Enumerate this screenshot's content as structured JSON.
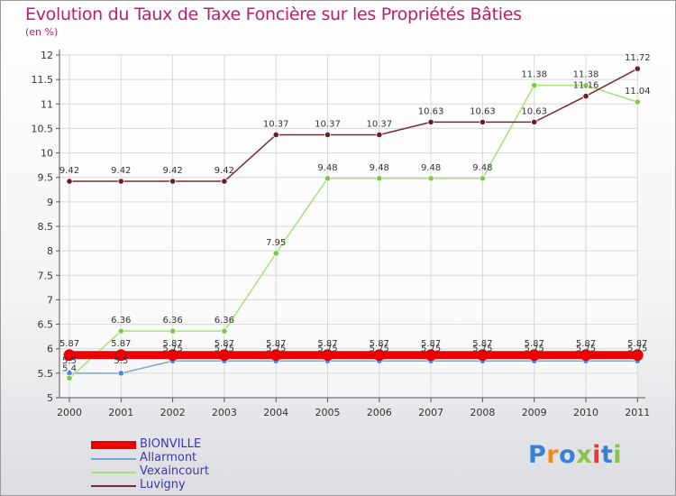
{
  "chart_data": {
    "type": "line",
    "title": "Evolution du Taux de Taxe Foncière sur les Propriétés Bâties",
    "subtitle": "(en %)",
    "xlabel": "",
    "ylabel": "(en %)",
    "ylim": [
      5,
      12
    ],
    "yticks": [
      "5",
      "5.5",
      "6",
      "6.5",
      "7",
      "7.5",
      "8",
      "8.5",
      "9",
      "9.5",
      "10",
      "10.5",
      "11",
      "11.5",
      "12"
    ],
    "categories": [
      "2000",
      "2001",
      "2002",
      "2003",
      "2004",
      "2005",
      "2006",
      "2007",
      "2008",
      "2009",
      "2010",
      "2011"
    ],
    "grid": true,
    "legend_position": "bottom-left",
    "series": [
      {
        "name": "BIONVILLE",
        "color": "#ee0000",
        "values": [
          5.87,
          5.87,
          5.87,
          5.87,
          5.87,
          5.87,
          5.87,
          5.87,
          5.87,
          5.87,
          5.87,
          5.87
        ],
        "labels": [
          "5.87",
          "5.87",
          "5.87",
          "5.87",
          "5.87",
          "5.87",
          "5.87",
          "5.87",
          "5.87",
          "5.87",
          "5.87",
          "5.87"
        ]
      },
      {
        "name": "Allarmont",
        "color": "#5b9bd5",
        "values": [
          5.5,
          5.5,
          5.75,
          5.75,
          5.75,
          5.75,
          5.75,
          5.75,
          5.75,
          5.75,
          5.75,
          5.75
        ],
        "labels": [
          "5.5",
          "5.5",
          "5.75",
          "5.75",
          "5.75",
          "5.75",
          "5.75",
          "5.75",
          "5.75",
          "5.75",
          "5.75",
          "5.75"
        ]
      },
      {
        "name": "Vexaincourt",
        "color": "#8cd35a",
        "values": [
          5.4,
          6.36,
          6.36,
          6.36,
          7.95,
          9.48,
          9.48,
          9.48,
          9.48,
          11.38,
          11.38,
          11.04
        ],
        "labels": [
          "5.4",
          "6.36",
          "6.36",
          "6.36",
          "7.95",
          "9.48",
          "9.48",
          "9.48",
          "9.48",
          "11.38",
          "11.38",
          "11.04"
        ]
      },
      {
        "name": "Luvigny",
        "color": "#7a2a35",
        "values": [
          9.42,
          9.42,
          9.42,
          9.42,
          10.37,
          10.37,
          10.37,
          10.63,
          10.63,
          10.63,
          11.16,
          11.72
        ],
        "labels": [
          "9.42",
          "9.42",
          "9.42",
          "9.42",
          "10.37",
          "10.37",
          "10.37",
          "10.63",
          "10.63",
          "10.63",
          "11.16",
          "11.72"
        ]
      }
    ]
  },
  "logo": {
    "text": "Proxiti",
    "colors": [
      "#3a7fd4",
      "#f08c1e",
      "#3a7fd4",
      "#8bc34a",
      "#e53935",
      "#3a7fd4",
      "#8bc34a"
    ]
  }
}
